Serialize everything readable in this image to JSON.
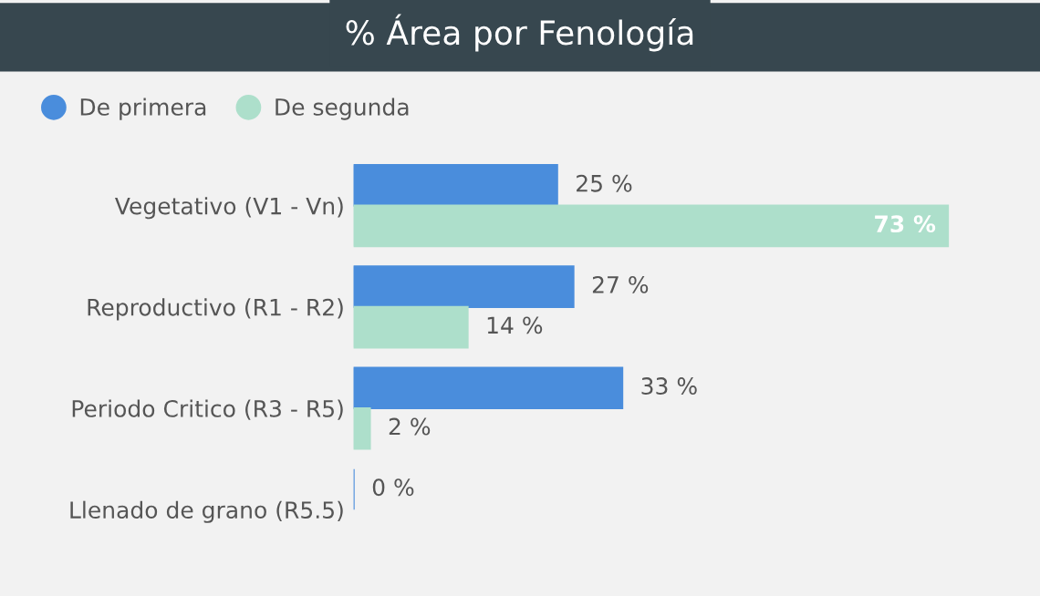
{
  "chart_data": {
    "type": "bar",
    "orientation": "horizontal",
    "title": "% Área por Fenología",
    "categories": [
      "Vegetativo (V1 - Vn)",
      "Reproductivo (R1 - R2)",
      "Periodo Critico (R3 - R5)",
      "Llenado de grano (R5.5)"
    ],
    "series": [
      {
        "name": "De primera",
        "color": "#4a8ddc",
        "values": [
          25,
          27,
          33,
          0
        ],
        "value_labels": [
          "25 %",
          "27 %",
          "33 %",
          "0 %"
        ]
      },
      {
        "name": "De segunda",
        "color": "#addfcb",
        "values": [
          73,
          14,
          2,
          null
        ],
        "value_labels": [
          "73 %",
          "14 %",
          "2 %",
          null
        ]
      }
    ],
    "legend": "top left",
    "grid": false
  }
}
